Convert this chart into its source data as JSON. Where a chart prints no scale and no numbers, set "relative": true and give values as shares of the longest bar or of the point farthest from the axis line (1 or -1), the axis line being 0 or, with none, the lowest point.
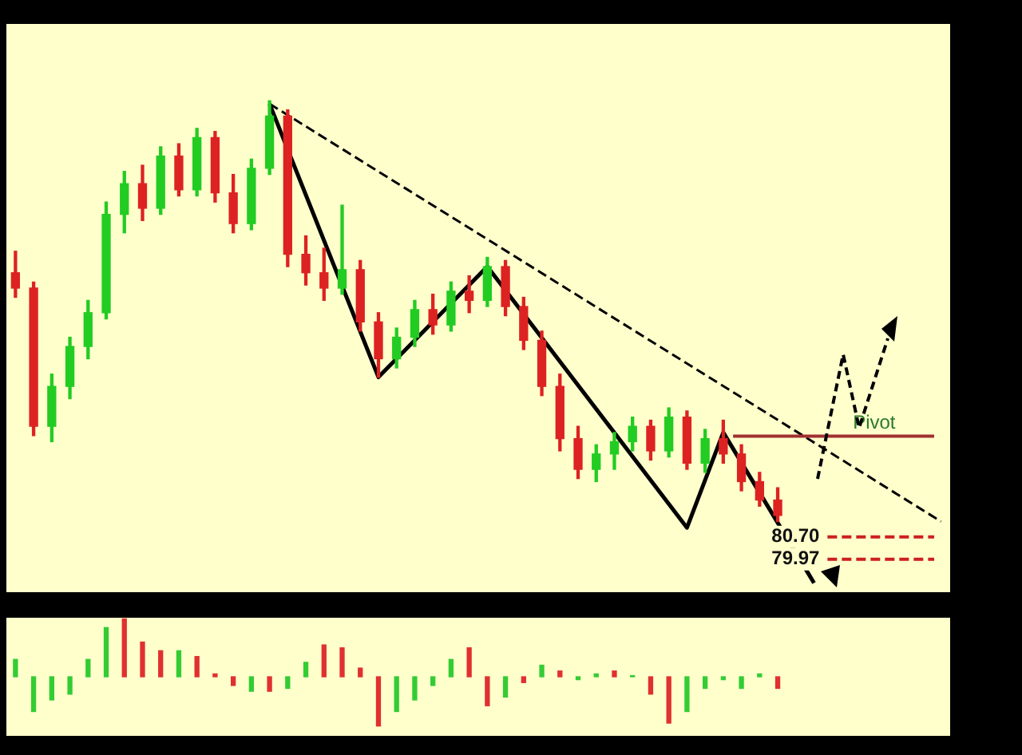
{
  "chart_data": [
    {
      "type": "candlestick",
      "categories": [
        null,
        null,
        null,
        null,
        null,
        null,
        null,
        null,
        null,
        null,
        null,
        null,
        null,
        null,
        null,
        null,
        null,
        null,
        null,
        null,
        null,
        null,
        null,
        null,
        null,
        null,
        null,
        null,
        null,
        null,
        null,
        null,
        null,
        null,
        null,
        null,
        null,
        null,
        null,
        null,
        null,
        null,
        null,
        null,
        null,
        null,
        null,
        null,
        null,
        null,
        null,
        null
      ],
      "ohlc": [
        [
          89.3,
          90.0,
          88.5,
          88.8
        ],
        [
          88.8,
          89.0,
          84.0,
          84.3
        ],
        [
          84.3,
          86.0,
          83.8,
          85.6
        ],
        [
          85.6,
          87.2,
          85.2,
          86.9
        ],
        [
          86.9,
          88.4,
          86.5,
          88.0
        ],
        [
          88.0,
          91.6,
          87.8,
          91.2
        ],
        [
          91.2,
          92.6,
          90.6,
          92.2
        ],
        [
          92.2,
          92.8,
          91.0,
          91.4
        ],
        [
          91.4,
          93.4,
          91.2,
          93.1
        ],
        [
          93.1,
          93.5,
          91.8,
          92.0
        ],
        [
          92.0,
          94.0,
          91.8,
          93.7
        ],
        [
          93.7,
          93.9,
          91.6,
          91.9
        ],
        [
          91.9,
          92.5,
          90.6,
          90.9
        ],
        [
          90.9,
          93.0,
          90.7,
          92.7
        ],
        [
          92.7,
          94.9,
          92.5,
          94.4
        ],
        [
          94.4,
          94.6,
          89.5,
          89.9
        ],
        [
          89.9,
          90.5,
          88.9,
          89.3
        ],
        [
          89.3,
          90.1,
          88.4,
          88.8
        ],
        [
          88.8,
          91.5,
          88.6,
          89.4
        ],
        [
          89.4,
          89.7,
          87.4,
          87.7
        ],
        [
          87.7,
          88.0,
          85.9,
          86.5
        ],
        [
          86.5,
          87.5,
          86.2,
          87.2
        ],
        [
          87.2,
          88.4,
          86.9,
          88.1
        ],
        [
          88.1,
          88.6,
          87.3,
          87.6
        ],
        [
          87.6,
          89.0,
          87.4,
          88.7
        ],
        [
          88.7,
          89.2,
          88.0,
          88.4
        ],
        [
          88.4,
          89.8,
          88.2,
          89.5
        ],
        [
          89.5,
          89.7,
          87.9,
          88.2
        ],
        [
          88.2,
          88.5,
          86.8,
          87.1
        ],
        [
          87.1,
          87.4,
          85.3,
          85.6
        ],
        [
          85.6,
          86.0,
          83.5,
          83.9
        ],
        [
          83.9,
          84.3,
          82.6,
          82.9
        ],
        [
          82.9,
          83.7,
          82.5,
          83.4
        ],
        [
          83.4,
          84.1,
          82.9,
          83.8
        ],
        [
          83.8,
          84.6,
          83.5,
          84.3
        ],
        [
          84.3,
          84.5,
          83.2,
          83.5
        ],
        [
          83.5,
          84.9,
          83.3,
          84.6
        ],
        [
          84.6,
          84.8,
          82.9,
          83.1
        ],
        [
          83.1,
          84.2,
          82.8,
          83.9
        ],
        [
          83.9,
          84.5,
          83.1,
          83.4
        ],
        [
          83.4,
          83.7,
          82.2,
          82.5
        ],
        [
          82.5,
          82.8,
          81.7,
          81.9
        ],
        [
          81.9,
          82.3,
          81.2,
          81.4
        ],
        null,
        null,
        null,
        null,
        null,
        null,
        null,
        null,
        null
      ],
      "series": [
        {
          "type": "line",
          "color": "#000000",
          "line_style": "solid",
          "values": [
            null,
            null,
            null,
            null,
            null,
            null,
            null,
            null,
            null,
            null,
            null,
            null,
            null,
            null,
            94.8,
            null,
            null,
            null,
            null,
            null,
            85.9,
            null,
            null,
            null,
            null,
            null,
            89.5,
            null,
            null,
            null,
            null,
            null,
            null,
            null,
            null,
            null,
            null,
            81.0,
            null,
            84.1,
            null,
            null,
            null,
            null,
            79.2,
            null,
            null,
            null,
            null,
            null,
            null,
            null
          ]
        },
        {
          "type": "line",
          "color": "#000000",
          "line_style": "dashed",
          "values": [
            null,
            null,
            null,
            null,
            null,
            null,
            null,
            null,
            null,
            null,
            null,
            null,
            null,
            null,
            94.8,
            null,
            null,
            null,
            null,
            null,
            null,
            null,
            null,
            null,
            null,
            null,
            null,
            null,
            null,
            null,
            null,
            null,
            null,
            null,
            null,
            null,
            null,
            null,
            null,
            null,
            null,
            null,
            null,
            null,
            null,
            null,
            null,
            null,
            null,
            null,
            null,
            81.2
          ]
        }
      ],
      "ylim": [
        78.9,
        97.4
      ],
      "tick_labels": false,
      "ref_lines": [
        {
          "axis": "y",
          "value": 83.98,
          "label": "Pivot",
          "color": "#a03030",
          "line_style": "solid"
        },
        {
          "axis": "y",
          "value": 80.7,
          "label": "80.70",
          "color": "#cc2020",
          "line_style": "dashed"
        },
        {
          "axis": "y",
          "value": 79.97,
          "label": "79.97",
          "color": "#cc2020",
          "line_style": "dashed"
        }
      ]
    },
    {
      "type": "bar",
      "relative": true,
      "tick_labels": false,
      "categories": [
        null,
        null,
        null,
        null,
        null,
        null,
        null,
        null,
        null,
        null,
        null,
        null,
        null,
        null,
        null,
        null,
        null,
        null,
        null,
        null,
        null,
        null,
        null,
        null,
        null,
        null,
        null,
        null,
        null,
        null,
        null,
        null,
        null,
        null,
        null,
        null,
        null,
        null,
        null,
        null,
        null,
        null,
        null,
        null,
        null,
        null,
        null,
        null,
        null,
        null,
        null,
        null
      ],
      "values": [
        0.3,
        -0.6,
        -0.4,
        -0.3,
        0.3,
        0.85,
        1,
        0.6,
        0.45,
        0.45,
        0.35,
        0.05,
        -0.15,
        -0.25,
        -0.25,
        -0.2,
        0.25,
        0.55,
        0.5,
        0.15,
        -0.85,
        -0.6,
        -0.4,
        -0.15,
        0.3,
        0.5,
        -0.5,
        -0.35,
        -0.1,
        0.2,
        0.1,
        -0.05,
        0.05,
        0.1,
        0.02,
        -0.3,
        -0.8,
        -0.6,
        -0.2,
        -0.05,
        -0.2,
        0.05,
        -0.2,
        null,
        null,
        null,
        null,
        null,
        null,
        null,
        null,
        null
      ],
      "colors": [
        "#33cc33",
        "#33cc33",
        "#33cc33",
        "#33cc33",
        "#33cc33",
        "#33cc33",
        "#e03030",
        "#e03030",
        "#e03030",
        "#33cc33",
        "#e03030",
        "#e03030",
        "#e03030",
        "#33cc33",
        "#e03030",
        "#33cc33",
        "#33cc33",
        "#e03030",
        "#e03030",
        "#e03030",
        "#e03030",
        "#33cc33",
        "#33cc33",
        "#33cc33",
        "#33cc33",
        "#e03030",
        "#e03030",
        "#33cc33",
        "#e03030",
        "#33cc33",
        "#e03030",
        "#33cc33",
        "#33cc33",
        "#e03030",
        "#33cc33",
        "#e03030",
        "#e03030",
        "#33cc33",
        "#33cc33",
        "#33cc33",
        "#33cc33",
        "#33cc33",
        "#e03030",
        "#33cc33",
        "#33cc33",
        "#33cc33",
        "#33cc33",
        "#33cc33",
        "#33cc33",
        "#33cc33",
        "#33cc33",
        "#33cc33"
      ]
    }
  ]
}
